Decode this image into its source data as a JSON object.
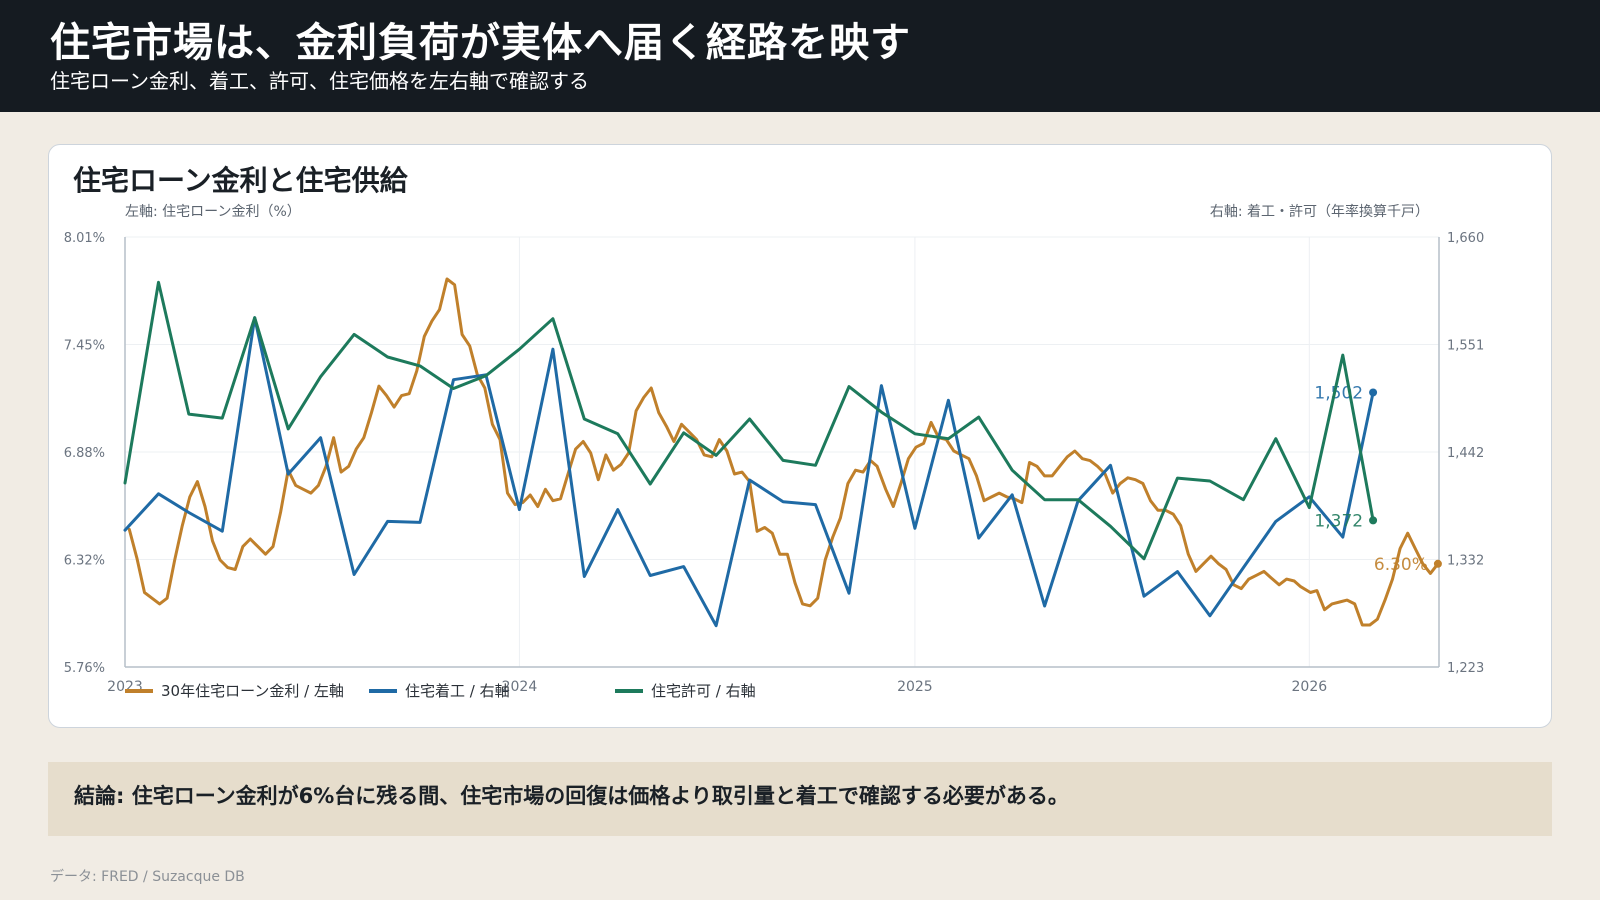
{
  "header": {
    "title": "住宅市場は、金利負荷が実体へ届く経路を映す",
    "subtitle": "住宅ローン金利、着工、許可、住宅価格を左右軸で確認する"
  },
  "card": {
    "title": "住宅ローン金利と住宅供給"
  },
  "conclusion": "結論: 住宅ローン金利が6%台に残る間、住宅市場の回復は価格より取引量と着工で確認する必要がある。",
  "source": "データ: FRED / Suzacque DB",
  "colors": {
    "mortgage": "#c0802b",
    "starts": "#1f6aa5",
    "permits": "#1d7a5c",
    "header_bg": "#151b21",
    "page_bg": "#f1ece4",
    "conclusion_bg": "#e6ddcc"
  },
  "chart_data": {
    "type": "line",
    "left_axis_label": "左軸: 住宅ローン金利（%）",
    "right_axis_label": "右軸: 着工・許可（年率換算千戸）",
    "left_ylim": [
      5.76,
      8.01
    ],
    "right_ylim": [
      1223,
      1660
    ],
    "left_ticks": [
      "8.01%",
      "7.45%",
      "6.88%",
      "6.32%",
      "5.76%"
    ],
    "right_ticks": [
      "1,660",
      "1,551",
      "1,442",
      "1,332",
      "1,223"
    ],
    "x_ticks": [
      "2023",
      "2024",
      "2025",
      "2026"
    ],
    "x_start": "2023",
    "x_end": "2026-05",
    "series": [
      {
        "name": "30年住宅ローン金利 / 左軸",
        "axis": "left",
        "last_label": "6.30%",
        "x": [
          "2023-01-05",
          "2023-01-12",
          "2023-01-19",
          "2023-01-26",
          "2023-02-02",
          "2023-02-09",
          "2023-02-16",
          "2023-02-23",
          "2023-03-02",
          "2023-03-09",
          "2023-03-16",
          "2023-03-23",
          "2023-03-30",
          "2023-04-06",
          "2023-04-13",
          "2023-04-20",
          "2023-04-27",
          "2023-05-04",
          "2023-05-11",
          "2023-05-18",
          "2023-05-25",
          "2023-06-01",
          "2023-06-08",
          "2023-06-15",
          "2023-06-22",
          "2023-06-29",
          "2023-07-06",
          "2023-07-13",
          "2023-07-20",
          "2023-07-27",
          "2023-08-03",
          "2023-08-10",
          "2023-08-17",
          "2023-08-24",
          "2023-08-31",
          "2023-09-07",
          "2023-09-14",
          "2023-09-21",
          "2023-09-28",
          "2023-10-05",
          "2023-10-12",
          "2023-10-19",
          "2023-10-26",
          "2023-11-02",
          "2023-11-09",
          "2023-11-16",
          "2023-11-23",
          "2023-11-30",
          "2023-12-07",
          "2023-12-14",
          "2023-12-21",
          "2023-12-28",
          "2024-01-04",
          "2024-01-11",
          "2024-01-18",
          "2024-01-25",
          "2024-02-01",
          "2024-02-08",
          "2024-02-15",
          "2024-02-22",
          "2024-02-29",
          "2024-03-07",
          "2024-03-14",
          "2024-03-21",
          "2024-03-28",
          "2024-04-04",
          "2024-04-11",
          "2024-04-18",
          "2024-04-25",
          "2024-05-02",
          "2024-05-09",
          "2024-05-16",
          "2024-05-23",
          "2024-05-30",
          "2024-06-06",
          "2024-06-13",
          "2024-06-20",
          "2024-06-27",
          "2024-07-04",
          "2024-07-11",
          "2024-07-18",
          "2024-07-25",
          "2024-08-01",
          "2024-08-08",
          "2024-08-15",
          "2024-08-22",
          "2024-08-29",
          "2024-09-05",
          "2024-09-12",
          "2024-09-19",
          "2024-09-26",
          "2024-10-03",
          "2024-10-10",
          "2024-10-17",
          "2024-10-24",
          "2024-10-31",
          "2024-11-07",
          "2024-11-14",
          "2024-11-21",
          "2024-11-27",
          "2024-12-05",
          "2024-12-12",
          "2024-12-19",
          "2024-12-26",
          "2025-01-02",
          "2025-01-09",
          "2025-01-16",
          "2025-01-23",
          "2025-01-30",
          "2025-02-06",
          "2025-02-13",
          "2025-02-20",
          "2025-02-27",
          "2025-03-06",
          "2025-03-13",
          "2025-03-20",
          "2025-03-27",
          "2025-04-03",
          "2025-04-10",
          "2025-04-17",
          "2025-04-24",
          "2025-05-01",
          "2025-05-08",
          "2025-05-15",
          "2025-05-22",
          "2025-05-29",
          "2025-06-05",
          "2025-06-12",
          "2025-06-19",
          "2025-06-26",
          "2025-07-03",
          "2025-07-10",
          "2025-07-17",
          "2025-07-24",
          "2025-07-31",
          "2025-08-07",
          "2025-08-14",
          "2025-08-21",
          "2025-08-28",
          "2025-09-04",
          "2025-09-11",
          "2025-09-18",
          "2025-09-25",
          "2025-10-02",
          "2025-10-09",
          "2025-10-16",
          "2025-10-23",
          "2025-10-30",
          "2025-11-06",
          "2025-11-13",
          "2025-11-20",
          "2025-11-26",
          "2025-12-04",
          "2025-12-11",
          "2025-12-18",
          "2025-12-24",
          "2026-01-02",
          "2026-01-08",
          "2026-01-15",
          "2026-01-22",
          "2026-01-29",
          "2026-02-05",
          "2026-02-12",
          "2026-02-19",
          "2026-02-26",
          "2026-03-05",
          "2026-03-12",
          "2026-03-19",
          "2026-03-26",
          "2026-04-02",
          "2026-04-09",
          "2026-04-16",
          "2026-04-23",
          "2026-04-30"
        ],
        "values": [
          6.48,
          6.33,
          6.15,
          6.12,
          6.09,
          6.12,
          6.32,
          6.5,
          6.65,
          6.73,
          6.6,
          6.42,
          6.32,
          6.28,
          6.27,
          6.39,
          6.43,
          6.39,
          6.35,
          6.39,
          6.57,
          6.79,
          6.71,
          6.69,
          6.67,
          6.71,
          6.81,
          6.96,
          6.78,
          6.81,
          6.9,
          6.96,
          7.09,
          7.23,
          7.18,
          7.12,
          7.18,
          7.19,
          7.31,
          7.49,
          7.57,
          7.63,
          7.79,
          7.76,
          7.5,
          7.44,
          7.29,
          7.22,
          7.03,
          6.95,
          6.67,
          6.61,
          6.62,
          6.66,
          6.6,
          6.69,
          6.63,
          6.64,
          6.77,
          6.9,
          6.94,
          6.88,
          6.74,
          6.87,
          6.79,
          6.82,
          6.88,
          7.1,
          7.17,
          7.22,
          7.09,
          7.02,
          6.94,
          7.03,
          6.99,
          6.95,
          6.87,
          6.86,
          6.95,
          6.89,
          6.77,
          6.78,
          6.73,
          6.47,
          6.49,
          6.46,
          6.35,
          6.35,
          6.2,
          6.09,
          6.08,
          6.12,
          6.32,
          6.44,
          6.54,
          6.72,
          6.79,
          6.78,
          6.84,
          6.81,
          6.69,
          6.6,
          6.72,
          6.85,
          6.91,
          6.93,
          7.04,
          6.96,
          6.95,
          6.89,
          6.87,
          6.85,
          6.76,
          6.63,
          6.65,
          6.67,
          6.65,
          6.64,
          6.62,
          6.83,
          6.81,
          6.76,
          6.76,
          6.81,
          6.86,
          6.89,
          6.85,
          6.84,
          6.81,
          6.77,
          6.67,
          6.72,
          6.75,
          6.74,
          6.72,
          6.63,
          6.58,
          6.58,
          6.56,
          6.5,
          6.35,
          6.26,
          6.3,
          6.34,
          6.3,
          6.27,
          6.19,
          6.17,
          6.22,
          6.24,
          6.26,
          6.23,
          6.19,
          6.22,
          6.21,
          6.18,
          6.15,
          6.16,
          6.06,
          6.09,
          6.1,
          6.11,
          6.09,
          5.98,
          5.98,
          6.01,
          6.11,
          6.22,
          6.38,
          6.46,
          6.38,
          6.3,
          6.25,
          6.3
        ]
      },
      {
        "name": "住宅着工 / 右軸",
        "axis": "right",
        "last_label": "1,502",
        "x": [
          "2023-01",
          "2023-02",
          "2023-03",
          "2023-04",
          "2023-05",
          "2023-06",
          "2023-07",
          "2023-08",
          "2023-09",
          "2023-10",
          "2023-11",
          "2023-12",
          "2024-01",
          "2024-02",
          "2024-03",
          "2024-04",
          "2024-05",
          "2024-06",
          "2024-07",
          "2024-08",
          "2024-09",
          "2024-10",
          "2024-11",
          "2024-12",
          "2025-01",
          "2025-02",
          "2025-03",
          "2025-04",
          "2025-05",
          "2025-06",
          "2025-07",
          "2025-08",
          "2025-09",
          "2025-10",
          "2025-11",
          "2025-12",
          "2026-01",
          "2026-02",
          "2026-03"
        ],
        "values": [
          1362,
          1399,
          1380,
          1361,
          1578,
          1419,
          1456,
          1317,
          1371,
          1370,
          1515,
          1520,
          1383,
          1546,
          1315,
          1383,
          1316,
          1325,
          1265,
          1413,
          1391,
          1388,
          1298,
          1509,
          1364,
          1494,
          1354,
          1398,
          1285,
          1392,
          1428,
          1295,
          1320,
          1275,
          1324,
          1371,
          1396,
          1355,
          1502
        ]
      },
      {
        "name": "住宅許可 / 右軸",
        "axis": "right",
        "last_label": "1,372",
        "x": [
          "2023-01",
          "2023-02",
          "2023-03",
          "2023-04",
          "2023-05",
          "2023-06",
          "2023-07",
          "2023-08",
          "2023-09",
          "2023-10",
          "2023-11",
          "2023-12",
          "2024-01",
          "2024-02",
          "2024-03",
          "2024-04",
          "2024-05",
          "2024-06",
          "2024-07",
          "2024-08",
          "2024-09",
          "2024-10",
          "2024-11",
          "2024-12",
          "2025-01",
          "2025-02",
          "2025-03",
          "2025-04",
          "2025-05",
          "2025-06",
          "2025-07",
          "2025-08",
          "2025-09",
          "2025-10",
          "2025-11",
          "2025-12",
          "2026-01",
          "2026-02",
          "2026-03"
        ],
        "values": [
          1410,
          1614,
          1480,
          1476,
          1578,
          1465,
          1518,
          1561,
          1538,
          1529,
          1506,
          1519,
          1546,
          1577,
          1475,
          1460,
          1409,
          1461,
          1438,
          1475,
          1433,
          1428,
          1508,
          1482,
          1460,
          1455,
          1477,
          1423,
          1393,
          1393,
          1366,
          1333,
          1415,
          1412,
          1393,
          1455,
          1385,
          1540,
          1372
        ]
      }
    ]
  }
}
